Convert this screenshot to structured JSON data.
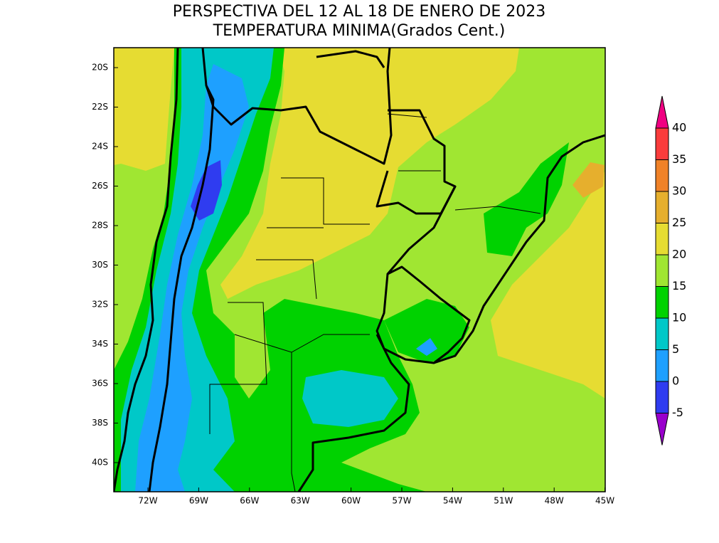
{
  "title": [
    "PERSPECTIVA DEL 12 AL 18 DE ENERO DE 2023",
    "TEMPERATURA MINIMA(Grados Cent.)"
  ],
  "lat_labels": [
    "20S",
    "22S",
    "24S",
    "26S",
    "28S",
    "30S",
    "32S",
    "34S",
    "36S",
    "38S",
    "40S"
  ],
  "lon_labels": [
    "72W",
    "69W",
    "66W",
    "63W",
    "60W",
    "57W",
    "54W",
    "51W",
    "48W",
    "45W"
  ],
  "colorbar": {
    "levels": [
      -5,
      0,
      5,
      10,
      15,
      20,
      25,
      30,
      35,
      40
    ],
    "colors": [
      "#9900cc",
      "#2f3cf0",
      "#1ea0ff",
      "#00c8c8",
      "#00d200",
      "#a0e632",
      "#e6dc32",
      "#e6af2d",
      "#f08228",
      "#fa3c3c",
      "#f00082"
    ]
  }
}
